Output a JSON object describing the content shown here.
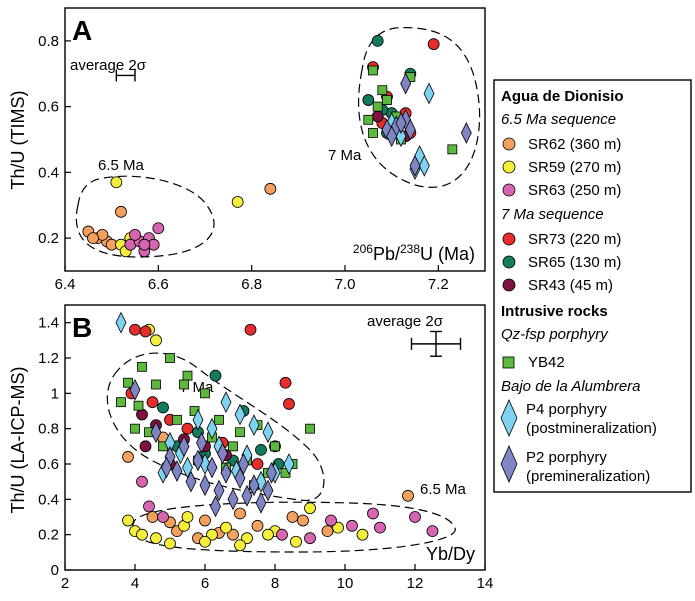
{
  "chart_data": [
    {
      "panel": "A",
      "type": "scatter",
      "xlabel_parts": {
        "pre": "206",
        "a": "Pb/",
        "mid": "238",
        "b": "U (Ma)"
      },
      "ylabel": "Th/U (TIMS)",
      "xlim": [
        6.4,
        7.3
      ],
      "ylim": [
        0.1,
        0.9
      ],
      "xticks": [
        "6.4",
        "6.6",
        "6.8",
        "7.0",
        "7.2"
      ],
      "yticks": [
        "0.2",
        "0.4",
        "0.6",
        "0.8"
      ],
      "error_label": "average 2σ",
      "error_bar": {
        "x": 6.53,
        "y": 0.695,
        "xerr": 0.02
      },
      "envelope_labels": [
        "6.5 Ma",
        "7 Ma"
      ],
      "series": [
        {
          "key": "SR62",
          "points": [
            [
              6.45,
              0.22
            ],
            [
              6.47,
              0.2
            ],
            [
              6.49,
              0.19
            ],
            [
              6.48,
              0.21
            ],
            [
              6.52,
              0.28
            ],
            [
              6.84,
              0.35
            ],
            [
              6.5,
              0.18
            ],
            [
              6.46,
              0.2
            ]
          ]
        },
        {
          "key": "SR59",
          "points": [
            [
              6.51,
              0.37
            ],
            [
              6.77,
              0.31
            ],
            [
              6.52,
              0.18
            ],
            [
              6.54,
              0.2
            ],
            [
              6.53,
              0.16
            ]
          ]
        },
        {
          "key": "SR63",
          "points": [
            [
              6.54,
              0.18
            ],
            [
              6.56,
              0.19
            ],
            [
              6.57,
              0.16
            ],
            [
              6.58,
              0.2
            ],
            [
              6.59,
              0.18
            ],
            [
              6.6,
              0.23
            ],
            [
              6.55,
              0.21
            ],
            [
              6.57,
              0.18
            ]
          ]
        },
        {
          "key": "SR73",
          "points": [
            [
              7.19,
              0.79
            ],
            [
              7.06,
              0.72
            ],
            [
              7.09,
              0.63
            ],
            [
              7.11,
              0.56
            ],
            [
              7.14,
              0.52
            ],
            [
              7.08,
              0.55
            ],
            [
              7.13,
              0.58
            ]
          ]
        },
        {
          "key": "SR65",
          "points": [
            [
              7.07,
              0.8
            ],
            [
              7.05,
              0.62
            ],
            [
              7.1,
              0.58
            ],
            [
              7.12,
              0.55
            ],
            [
              7.09,
              0.52
            ],
            [
              7.14,
              0.7
            ],
            [
              7.08,
              0.59
            ]
          ]
        },
        {
          "key": "SR43",
          "points": [
            [
              7.07,
              0.57
            ],
            [
              7.11,
              0.53
            ],
            [
              7.13,
              0.51
            ]
          ]
        },
        {
          "key": "YB42",
          "points": [
            [
              7.06,
              0.71
            ],
            [
              7.08,
              0.65
            ],
            [
              7.07,
              0.6
            ],
            [
              7.05,
              0.56
            ],
            [
              7.1,
              0.54
            ],
            [
              7.12,
              0.5
            ],
            [
              7.09,
              0.62
            ],
            [
              7.23,
              0.47
            ],
            [
              7.14,
              0.69
            ],
            [
              7.06,
              0.52
            ],
            [
              7.11,
              0.57
            ]
          ]
        },
        {
          "key": "P4",
          "points": [
            [
              7.18,
              0.64
            ],
            [
              7.16,
              0.45
            ],
            [
              7.15,
              0.41
            ],
            [
              7.17,
              0.42
            ],
            [
              7.12,
              0.51
            ],
            [
              7.1,
              0.55
            ]
          ]
        },
        {
          "key": "P2",
          "points": [
            [
              7.13,
              0.67
            ],
            [
              7.26,
              0.52
            ],
            [
              7.15,
              0.42
            ],
            [
              7.11,
              0.54
            ],
            [
              7.13,
              0.56
            ],
            [
              7.09,
              0.53
            ],
            [
              7.12,
              0.55
            ],
            [
              7.14,
              0.53
            ],
            [
              7.1,
              0.51
            ]
          ]
        }
      ]
    },
    {
      "panel": "B",
      "type": "scatter",
      "xlabel": "Yb/Dy",
      "ylabel": "Th/U (LA-ICP-MS)",
      "xlim": [
        2,
        14
      ],
      "ylim": [
        0,
        1.5
      ],
      "xticks": [
        "2",
        "4",
        "6",
        "8",
        "10",
        "12",
        "14"
      ],
      "yticks": [
        "0",
        "0.2",
        "0.4",
        "0.6",
        "0.8",
        "1",
        "1.2",
        "1.4"
      ],
      "error_label": "average 2σ",
      "error_bar": {
        "x": 12.6,
        "y": 1.28,
        "xerr": 0.7,
        "yerr": 0.07
      },
      "envelope_labels": [
        "7 Ma",
        "6.5 Ma"
      ],
      "series": [
        {
          "key": "SR62",
          "points": [
            [
              4.5,
              0.3
            ],
            [
              5.2,
              0.22
            ],
            [
              6.0,
              0.28
            ],
            [
              6.8,
              0.2
            ],
            [
              7.5,
              0.25
            ],
            [
              8.5,
              0.3
            ],
            [
              9.5,
              0.22
            ],
            [
              11.8,
              0.42
            ],
            [
              5.8,
              0.18
            ],
            [
              7.0,
              0.32
            ],
            [
              3.8,
              0.64
            ],
            [
              4.8,
              0.75
            ],
            [
              8.8,
              0.28
            ],
            [
              6.4,
              0.21
            ],
            [
              5.0,
              0.27
            ]
          ]
        },
        {
          "key": "SR59",
          "points": [
            [
              4.0,
              0.22
            ],
            [
              4.6,
              0.18
            ],
            [
              5.4,
              0.25
            ],
            [
              6.2,
              0.2
            ],
            [
              7.2,
              0.18
            ],
            [
              8.0,
              0.22
            ],
            [
              9.0,
              0.35
            ],
            [
              10.5,
              0.2
            ],
            [
              4.4,
              1.36
            ],
            [
              4.6,
              1.3
            ],
            [
              5.5,
              0.3
            ],
            [
              6.6,
              0.24
            ],
            [
              7.8,
              0.2
            ],
            [
              3.8,
              0.28
            ],
            [
              5.0,
              0.15
            ],
            [
              6.0,
              0.16
            ],
            [
              8.6,
              0.16
            ],
            [
              9.8,
              0.24
            ],
            [
              4.2,
              0.2
            ],
            [
              7.0,
              0.14
            ]
          ]
        },
        {
          "key": "SR63",
          "points": [
            [
              9.6,
              0.28
            ],
            [
              10.2,
              0.25
            ],
            [
              11.0,
              0.24
            ],
            [
              12.0,
              0.3
            ],
            [
              12.5,
              0.22
            ],
            [
              8.2,
              0.2
            ],
            [
              9.0,
              0.18
            ],
            [
              4.2,
              0.5
            ],
            [
              4.8,
              0.3
            ],
            [
              10.8,
              0.32
            ],
            [
              4.4,
              0.36
            ]
          ]
        },
        {
          "key": "SR73",
          "points": [
            [
              4.0,
              1.36
            ],
            [
              4.3,
              1.35
            ],
            [
              7.3,
              1.36
            ],
            [
              8.3,
              1.06
            ],
            [
              8.4,
              0.94
            ],
            [
              8.0,
              0.7
            ],
            [
              4.5,
              0.95
            ],
            [
              5.0,
              0.85
            ],
            [
              6.5,
              0.72
            ],
            [
              7.5,
              0.6
            ],
            [
              3.9,
              1.0
            ],
            [
              5.5,
              0.8
            ]
          ]
        },
        {
          "key": "SR65",
          "points": [
            [
              6.3,
              1.1
            ],
            [
              7.1,
              0.9
            ],
            [
              5.8,
              0.78
            ],
            [
              4.8,
              0.92
            ],
            [
              7.6,
              0.68
            ],
            [
              6.8,
              0.62
            ],
            [
              5.2,
              0.7
            ],
            [
              6.0,
              0.66
            ],
            [
              8.1,
              0.6
            ]
          ]
        },
        {
          "key": "SR43",
          "points": [
            [
              4.2,
              0.88
            ],
            [
              4.6,
              0.82
            ],
            [
              5.4,
              0.74
            ],
            [
              6.0,
              0.7
            ],
            [
              6.6,
              0.65
            ],
            [
              5.0,
              0.6
            ],
            [
              4.3,
              0.7
            ]
          ]
        },
        {
          "key": "YB42",
          "points": [
            [
              3.8,
              1.06
            ],
            [
              3.6,
              0.95
            ],
            [
              4.0,
              0.8
            ],
            [
              4.2,
              1.15
            ],
            [
              4.6,
              1.05
            ],
            [
              5.0,
              1.2
            ],
            [
              5.5,
              1.1
            ],
            [
              6.0,
              1.0
            ],
            [
              6.4,
              0.85
            ],
            [
              7.0,
              0.78
            ],
            [
              7.5,
              0.82
            ],
            [
              8.0,
              0.7
            ],
            [
              8.5,
              0.6
            ],
            [
              9.0,
              0.8
            ],
            [
              8.3,
              0.55
            ],
            [
              7.8,
              0.55
            ],
            [
              7.2,
              0.62
            ],
            [
              6.8,
              0.7
            ],
            [
              6.2,
              0.75
            ],
            [
              5.7,
              0.9
            ],
            [
              5.2,
              0.85
            ],
            [
              4.8,
              0.7
            ],
            [
              4.4,
              0.78
            ],
            [
              5.8,
              0.62
            ],
            [
              6.6,
              0.58
            ],
            [
              7.4,
              0.48
            ],
            [
              4.1,
              0.93
            ],
            [
              5.4,
              1.05
            ]
          ]
        },
        {
          "key": "P4",
          "points": [
            [
              3.6,
              1.4
            ],
            [
              6.6,
              0.95
            ],
            [
              7.0,
              0.88
            ],
            [
              7.4,
              0.82
            ],
            [
              8.4,
              0.6
            ],
            [
              7.8,
              0.78
            ],
            [
              6.2,
              0.8
            ],
            [
              5.8,
              0.85
            ],
            [
              5.0,
              0.72
            ],
            [
              5.3,
              0.66
            ],
            [
              6.4,
              0.7
            ],
            [
              7.2,
              0.65
            ],
            [
              8.0,
              0.55
            ],
            [
              7.6,
              0.5
            ],
            [
              6.9,
              0.56
            ],
            [
              6.0,
              0.6
            ],
            [
              4.8,
              0.55
            ],
            [
              5.5,
              0.58
            ]
          ]
        },
        {
          "key": "P2",
          "points": [
            [
              4.0,
              1.02
            ],
            [
              4.6,
              0.78
            ],
            [
              5.0,
              0.64
            ],
            [
              5.4,
              0.7
            ],
            [
              5.8,
              0.62
            ],
            [
              6.2,
              0.58
            ],
            [
              6.6,
              0.55
            ],
            [
              7.0,
              0.52
            ],
            [
              7.4,
              0.48
            ],
            [
              7.8,
              0.45
            ],
            [
              6.4,
              0.45
            ],
            [
              6.8,
              0.4
            ],
            [
              5.6,
              0.5
            ],
            [
              5.2,
              0.56
            ],
            [
              6.0,
              0.48
            ],
            [
              7.2,
              0.42
            ],
            [
              7.6,
              0.38
            ],
            [
              6.5,
              0.66
            ],
            [
              5.9,
              0.72
            ],
            [
              7.1,
              0.6
            ],
            [
              4.9,
              0.58
            ],
            [
              6.3,
              0.36
            ],
            [
              7.9,
              0.55
            ]
          ]
        }
      ]
    }
  ],
  "legend": {
    "title": "Agua de Dionisio",
    "groups": [
      {
        "heading": "6.5 Ma sequence",
        "items": [
          {
            "key": "SR62",
            "label": "SR62 (360 m)",
            "shape": "circle",
            "color": "#f4a160"
          },
          {
            "key": "SR59",
            "label": "SR59 (270 m)",
            "shape": "circle",
            "color": "#f4ef3c"
          },
          {
            "key": "SR63",
            "label": "SR63 (250 m)",
            "shape": "circle",
            "color": "#d766b0"
          }
        ]
      },
      {
        "heading": "7 Ma sequence",
        "items": [
          {
            "key": "SR73",
            "label": "SR73 (220 m)",
            "shape": "circle",
            "color": "#e52d2d"
          },
          {
            "key": "SR65",
            "label": "SR65 (130 m)",
            "shape": "circle",
            "color": "#137a5e"
          },
          {
            "key": "SR43",
            "label": "SR43 (45 m)",
            "shape": "circle",
            "color": "#7d1140"
          }
        ]
      }
    ],
    "intrusive_title": "Intrusive rocks",
    "porphyry_heading": "Qz-fsp porphyry",
    "yb42": {
      "key": "YB42",
      "label": "YB42",
      "shape": "square",
      "color": "#5cb83e"
    },
    "bajo_heading": "Bajo de la Alumbrera",
    "p4": {
      "key": "P4",
      "line1": "P4 porphyry",
      "line2": "(postmineralization)",
      "shape": "diamond",
      "color": "#7fd3f0"
    },
    "p2": {
      "key": "P2",
      "line1": "P2 porphyry",
      "line2": "(premineralization)",
      "shape": "diamond",
      "color": "#7f84c2"
    }
  }
}
